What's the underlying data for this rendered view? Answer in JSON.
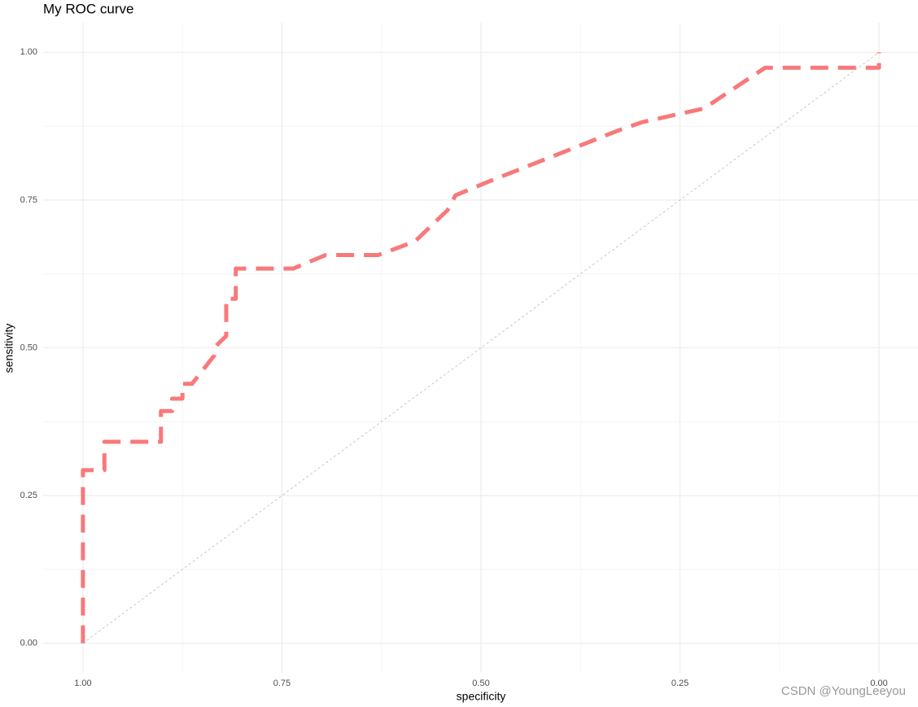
{
  "chart_data": {
    "type": "line",
    "title": "My ROC curve",
    "x_label": "specificity",
    "y_label": "sensitivity",
    "x": [
      1,
      1,
      0.973,
      0.973,
      0.902,
      0.902,
      0.888,
      0.888,
      0.875,
      0.875,
      0.863,
      0.835,
      0.833,
      0.82,
      0.82,
      0.808,
      0.808,
      0.736,
      0.695,
      0.629,
      0.583,
      0.542,
      0.532,
      0.491,
      0.327,
      0.297,
      0.22,
      0.143,
      0,
      0
    ],
    "series": [
      {
        "name": "ROC",
        "color": "#f8797a",
        "values": [
          0,
          0.293,
          0.293,
          0.341,
          0.341,
          0.393,
          0.393,
          0.414,
          0.414,
          0.439,
          0.439,
          0.487,
          0.503,
          0.52,
          0.583,
          0.583,
          0.634,
          0.634,
          0.657,
          0.657,
          0.68,
          0.733,
          0.758,
          0.781,
          0.868,
          0.882,
          0.905,
          0.974,
          0.974,
          1
        ]
      }
    ],
    "reference_line": [
      [
        1,
        0
      ],
      [
        0,
        1
      ]
    ],
    "xlim": [
      1.05,
      -0.05
    ],
    "ylim": [
      -0.05,
      1.05
    ],
    "xticks": [
      {
        "value": 1,
        "label": "1.00"
      },
      {
        "value": 0.75,
        "label": "0.75"
      },
      {
        "value": 0.5,
        "label": "0.50"
      },
      {
        "value": 0.25,
        "label": "0.25"
      },
      {
        "value": 0,
        "label": "0.00"
      }
    ],
    "yticks": [
      {
        "value": 0,
        "label": "0.00"
      },
      {
        "value": 0.25,
        "label": "0.25"
      },
      {
        "value": 0.5,
        "label": "0.50"
      },
      {
        "value": 0.75,
        "label": "0.75"
      },
      {
        "value": 1,
        "label": "1.00"
      }
    ],
    "minor_xticks": [
      0.875,
      0.625,
      0.375,
      0.125
    ],
    "minor_yticks": [
      0.125,
      0.375,
      0.625,
      0.875
    ],
    "grid": true,
    "dashed": true,
    "watermark": "CSDN @YoungLeeyou"
  }
}
